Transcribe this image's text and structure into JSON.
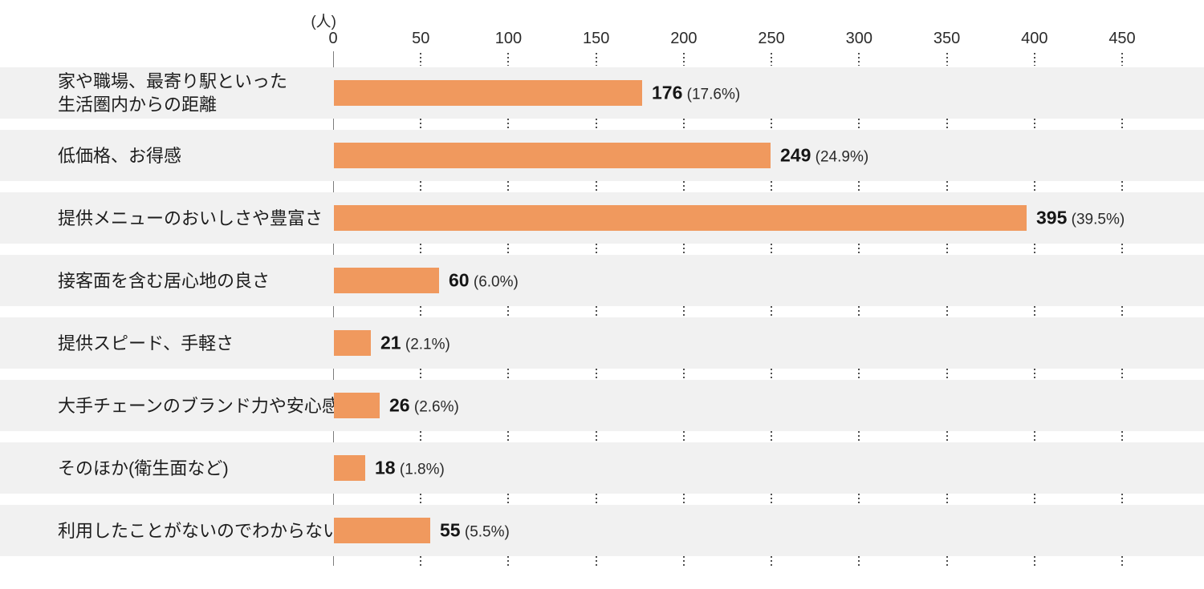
{
  "chart_data": {
    "type": "bar",
    "orientation": "horizontal",
    "unit_label": "(人)",
    "xlim": [
      0,
      450
    ],
    "x_ticks": [
      0,
      50,
      100,
      150,
      200,
      250,
      300,
      350,
      400,
      450
    ],
    "grid": "dotted-vertical-in-row-gaps",
    "legend": "none",
    "categories": [
      "家や職場、最寄り駅といった\n生活圏内からの距離",
      "低価格、お得感",
      "提供メニューのおいしさや豊富さ",
      "接客面を含む居心地の良さ",
      "提供スピード、手軽さ",
      "大手チェーンのブランド力や安心感",
      "そのほか(衛生面など)",
      "利用したことがないのでわからない"
    ],
    "values": [
      176,
      249,
      395,
      60,
      21,
      26,
      18,
      55
    ],
    "percent_labels": [
      "(17.6%)",
      "(24.9%)",
      "(39.5%)",
      "(6.0%)",
      "(2.1%)",
      "(2.6%)",
      "(1.8%)",
      "(5.5%)"
    ],
    "colors": {
      "bar": "#f0995e",
      "row_band": "#f1f1f1",
      "axis_line": "#7d7d7d",
      "grid_dots": "#4f4f4f",
      "text": "#1d1d1d"
    }
  }
}
